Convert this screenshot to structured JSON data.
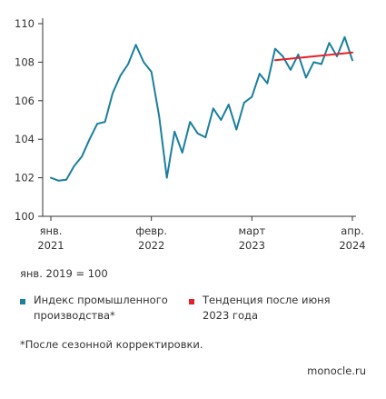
{
  "chart_data": {
    "type": "line",
    "ylim": [
      100,
      110
    ],
    "y_ticks": [
      "100",
      "102",
      "104",
      "106",
      "108",
      "110"
    ],
    "x_ticks": [
      {
        "top": "янв.",
        "bottom": "2021",
        "index": 0
      },
      {
        "top": "февр.",
        "bottom": "2022",
        "index": 13
      },
      {
        "top": "март",
        "bottom": "2023",
        "index": 26
      },
      {
        "top": "апр.",
        "bottom": "2024",
        "index": 39
      }
    ],
    "series": [
      {
        "name": "Индекс промышленного производства*",
        "color": "#1b7f9e",
        "values": [
          102.0,
          101.85,
          101.9,
          102.6,
          103.1,
          104.0,
          104.8,
          104.9,
          106.4,
          107.3,
          107.9,
          108.9,
          108.0,
          107.5,
          105.2,
          102.0,
          104.4,
          103.3,
          104.9,
          104.3,
          104.1,
          105.6,
          105.0,
          105.8,
          104.5,
          105.9,
          106.2,
          107.4,
          106.9,
          108.7,
          108.3,
          107.6,
          108.4,
          107.2,
          108.0,
          107.9,
          109.0,
          108.3,
          109.3,
          108.1
        ]
      },
      {
        "name": "Тенденция после июня 2023 года",
        "color": "#e3202a",
        "x_start": 29,
        "x_end": 39,
        "values": [
          108.1,
          108.5
        ]
      }
    ]
  },
  "base_note": "янв. 2019 = 100",
  "legend": [
    {
      "label": "Индекс промышленного производства*",
      "color": "#1b7f9e"
    },
    {
      "label": "Тенденция после июня 2023 года",
      "color": "#e3202a"
    }
  ],
  "footnote": "*После сезонной корректировки.",
  "source": "monocle.ru"
}
